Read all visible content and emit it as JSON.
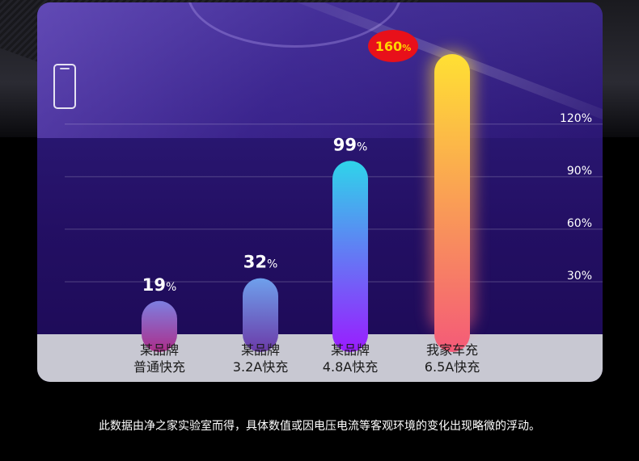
{
  "chart_data": {
    "type": "bar",
    "categories": [
      [
        "某品牌",
        "普通快充"
      ],
      [
        "某品牌",
        "3.2A快充"
      ],
      [
        "某品牌",
        "4.8A快充"
      ],
      [
        "我家车充",
        "6.5A快充"
      ]
    ],
    "values": [
      19,
      32,
      99,
      160
    ],
    "value_labels": [
      "19",
      "32",
      "99",
      "160"
    ],
    "value_unit": "%",
    "ytick_values": [
      30,
      60,
      90,
      120
    ],
    "ytick_labels": [
      "30%",
      "60%",
      "90%",
      "120%"
    ],
    "ylim": [
      0,
      160
    ],
    "grid": true,
    "colors": {
      "bar1": [
        "#7d7fe0",
        "#ad2d8a"
      ],
      "bar2": [
        "#6ea0ec",
        "#6b3aa8"
      ],
      "bar3": [
        "#2fd4ea",
        "#9a1cff"
      ],
      "bar4": [
        "#ffe033",
        "#f45a78"
      ],
      "highlight_badge": "#e8101a",
      "highlight_text": "#ffd400"
    }
  },
  "footnote": "此数据由净之家实验室而得，具体数值或因电压电流等客观环境的变化出现略微的浮动。"
}
